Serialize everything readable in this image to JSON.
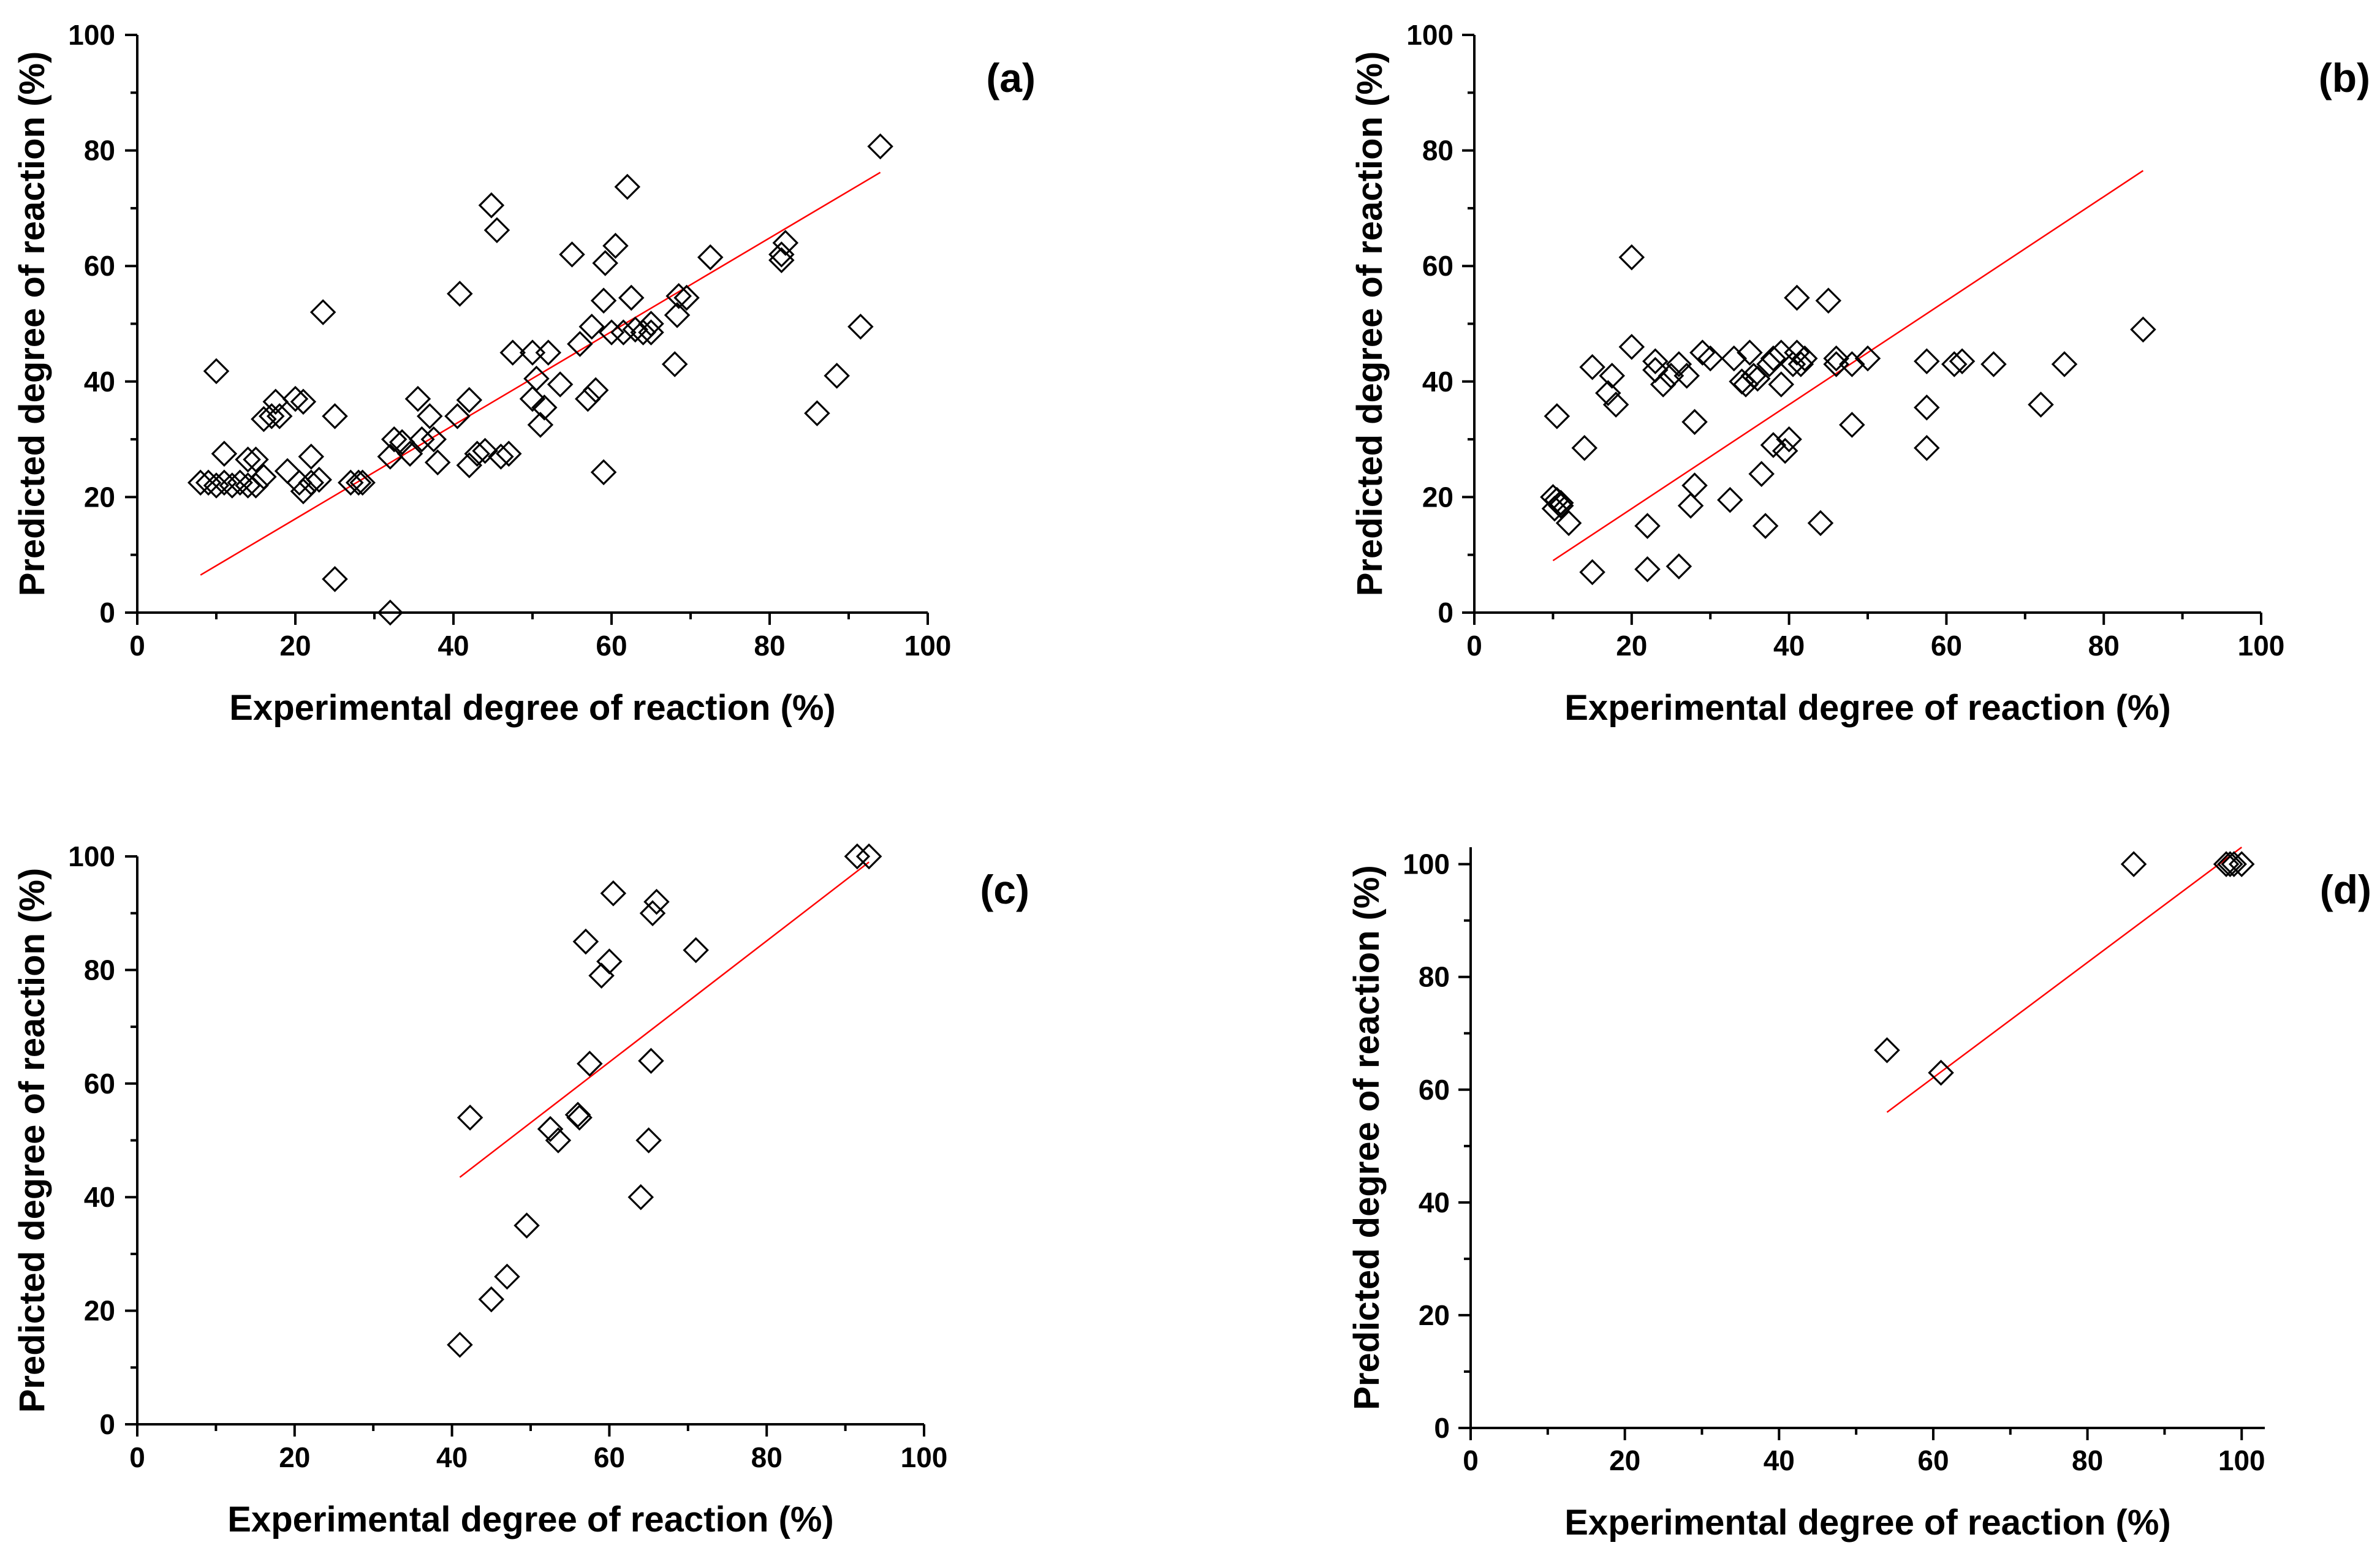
{
  "chart_data": [
    {
      "type": "scatter",
      "panel_label": "(a)",
      "xlabel": "Experimental degree of reaction (%)",
      "ylabel": "Predicted degree of reaction (%)",
      "xlim": [
        0,
        100
      ],
      "ylim": [
        0,
        100
      ],
      "xticks": [
        0,
        20,
        40,
        60,
        80,
        100
      ],
      "yticks": [
        0,
        20,
        40,
        60,
        80,
        100
      ],
      "xtick_labels": [
        "0",
        "20",
        "40",
        "60",
        "80",
        "100"
      ],
      "ytick_labels": [
        "0",
        "20",
        "40",
        "60",
        "80",
        "100"
      ],
      "marker": "open-diamond",
      "fit_line": {
        "x": [
          8,
          94
        ],
        "y": [
          6.5,
          76.2
        ],
        "color": "#ff0000"
      },
      "points": [
        [
          8,
          22.5
        ],
        [
          9,
          22.5
        ],
        [
          10,
          22
        ],
        [
          11,
          22.5
        ],
        [
          12,
          22
        ],
        [
          13,
          22.5
        ],
        [
          14,
          22
        ],
        [
          15,
          22
        ],
        [
          11,
          27.5
        ],
        [
          14,
          26.5
        ],
        [
          15,
          26.5
        ],
        [
          16,
          23.5
        ],
        [
          10,
          41.8
        ],
        [
          16,
          33.5
        ],
        [
          17,
          34
        ],
        [
          18,
          34
        ],
        [
          17.5,
          36.5
        ],
        [
          19,
          24.5
        ],
        [
          20,
          37
        ],
        [
          21,
          36.5
        ],
        [
          20.5,
          22.5
        ],
        [
          21,
          21
        ],
        [
          22,
          22.5
        ],
        [
          22,
          27
        ],
        [
          23,
          23
        ],
        [
          23.5,
          52
        ],
        [
          25,
          34
        ],
        [
          25,
          5.8
        ],
        [
          27,
          22.5
        ],
        [
          28,
          22.5
        ],
        [
          28.5,
          22.5
        ],
        [
          32,
          0
        ],
        [
          32,
          27
        ],
        [
          32.5,
          30
        ],
        [
          33.5,
          29.5
        ],
        [
          34.5,
          27.5
        ],
        [
          35.5,
          37
        ],
        [
          36,
          30
        ],
        [
          37,
          34
        ],
        [
          37.5,
          30
        ],
        [
          38,
          26
        ],
        [
          40.5,
          34
        ],
        [
          40.8,
          55.2
        ],
        [
          42,
          36.8
        ],
        [
          42,
          25.5
        ],
        [
          43,
          27.5
        ],
        [
          44,
          28
        ],
        [
          44.8,
          70.5
        ],
        [
          45.5,
          66.2
        ],
        [
          46,
          27
        ],
        [
          47,
          27.5
        ],
        [
          47.5,
          45
        ],
        [
          50,
          45
        ],
        [
          50,
          37
        ],
        [
          50.5,
          40.5
        ],
        [
          51,
          32.5
        ],
        [
          51.5,
          35.5
        ],
        [
          52,
          45
        ],
        [
          53.5,
          39.5
        ],
        [
          55,
          62
        ],
        [
          56,
          46.5
        ],
        [
          57,
          37
        ],
        [
          57.5,
          49.5
        ],
        [
          58,
          38.5
        ],
        [
          59,
          24.3
        ],
        [
          59,
          54
        ],
        [
          59.2,
          60.5
        ],
        [
          60,
          48.5
        ],
        [
          60.5,
          63.5
        ],
        [
          61.5,
          48.5
        ],
        [
          62,
          73.7
        ],
        [
          62.5,
          54.5
        ],
        [
          63,
          49
        ],
        [
          64,
          48.5
        ],
        [
          65,
          50
        ],
        [
          65,
          48.5
        ],
        [
          68,
          43
        ],
        [
          68.3,
          51.5
        ],
        [
          68.5,
          54.8
        ],
        [
          69.5,
          54.5
        ],
        [
          72.5,
          61.5
        ],
        [
          81.5,
          62
        ],
        [
          81.5,
          61
        ],
        [
          82,
          64
        ],
        [
          86,
          34.5
        ],
        [
          88.5,
          41
        ],
        [
          91.5,
          49.5
        ],
        [
          94,
          80.7
        ]
      ]
    },
    {
      "type": "scatter",
      "panel_label": "(b)",
      "xlabel": "Experimental degree of reaction (%)",
      "ylabel": "Predicted degree of reaction (%)",
      "xlim": [
        0,
        100
      ],
      "ylim": [
        0,
        100
      ],
      "xticks": [
        0,
        20,
        40,
        60,
        80,
        100
      ],
      "yticks": [
        0,
        20,
        40,
        60,
        80,
        100
      ],
      "xtick_labels": [
        "0",
        "20",
        "40",
        "60",
        "80",
        "100"
      ],
      "ytick_labels": [
        "0",
        "20",
        "40",
        "60",
        "80",
        "100"
      ],
      "marker": "open-diamond",
      "fit_line": {
        "x": [
          10,
          85
        ],
        "y": [
          9,
          76.5
        ],
        "color": "#ff0000"
      },
      "points": [
        [
          10,
          20
        ],
        [
          10.2,
          18
        ],
        [
          10.5,
          34
        ],
        [
          10.5,
          19.5
        ],
        [
          11,
          18.5
        ],
        [
          11,
          19
        ],
        [
          12,
          15.5
        ],
        [
          14,
          28.5
        ],
        [
          15,
          42.5
        ],
        [
          15,
          7
        ],
        [
          17,
          38
        ],
        [
          17.5,
          41
        ],
        [
          18,
          36
        ],
        [
          20,
          61.5
        ],
        [
          20,
          46
        ],
        [
          22,
          15
        ],
        [
          22,
          7.5
        ],
        [
          23,
          42
        ],
        [
          23,
          43.5
        ],
        [
          24,
          39.5
        ],
        [
          25,
          41
        ],
        [
          26,
          8
        ],
        [
          26,
          43
        ],
        [
          27,
          41
        ],
        [
          27.5,
          18.5
        ],
        [
          28,
          22
        ],
        [
          28,
          33
        ],
        [
          29,
          45
        ],
        [
          30,
          44
        ],
        [
          32.5,
          19.5
        ],
        [
          33,
          44
        ],
        [
          34,
          40
        ],
        [
          34.5,
          39.5
        ],
        [
          35,
          45
        ],
        [
          35.5,
          41
        ],
        [
          36,
          40.5
        ],
        [
          36.5,
          24
        ],
        [
          37,
          15
        ],
        [
          37.5,
          43
        ],
        [
          38,
          29
        ],
        [
          38,
          44
        ],
        [
          39,
          45
        ],
        [
          39,
          39.5
        ],
        [
          39.5,
          28
        ],
        [
          40,
          30
        ],
        [
          40.5,
          43
        ],
        [
          41,
          54.5
        ],
        [
          41,
          45
        ],
        [
          41.5,
          43
        ],
        [
          42,
          44
        ],
        [
          44,
          15.5
        ],
        [
          45,
          54
        ],
        [
          46,
          43
        ],
        [
          46,
          44
        ],
        [
          48,
          43
        ],
        [
          48,
          32.5
        ],
        [
          50,
          44
        ],
        [
          57.5,
          43.5
        ],
        [
          57.5,
          35.5
        ],
        [
          57.5,
          28.5
        ],
        [
          61,
          43
        ],
        [
          62,
          43.5
        ],
        [
          66,
          43
        ],
        [
          72,
          36
        ],
        [
          75,
          43
        ],
        [
          85,
          49
        ]
      ]
    },
    {
      "type": "scatter",
      "panel_label": "(c)",
      "xlabel": "Experimental degree of reaction (%)",
      "ylabel": "Predicted degree of reaction (%)",
      "xlim": [
        0,
        100
      ],
      "ylim": [
        0,
        100
      ],
      "xticks": [
        0,
        20,
        40,
        60,
        80,
        100
      ],
      "yticks": [
        0,
        20,
        40,
        60,
        80,
        100
      ],
      "xtick_labels": [
        "0",
        "20",
        "40",
        "60",
        "80",
        "100"
      ],
      "ytick_labels": [
        "0",
        "20",
        "40",
        "60",
        "80",
        "100"
      ],
      "marker": "open-diamond",
      "fit_line": {
        "x": [
          41,
          93
        ],
        "y": [
          43.5,
          99
        ],
        "color": "#ff0000"
      },
      "points": [
        [
          41,
          14
        ],
        [
          42.3,
          54
        ],
        [
          45,
          22
        ],
        [
          47,
          26
        ],
        [
          49.5,
          35
        ],
        [
          52.5,
          52
        ],
        [
          53.5,
          50
        ],
        [
          56,
          54.5
        ],
        [
          56.2,
          54
        ],
        [
          57,
          85
        ],
        [
          57.5,
          63.5
        ],
        [
          59,
          79
        ],
        [
          60,
          81.5
        ],
        [
          60.5,
          93.5
        ],
        [
          64,
          40
        ],
        [
          65,
          50
        ],
        [
          65.3,
          64
        ],
        [
          65.5,
          90
        ],
        [
          66,
          92
        ],
        [
          71,
          83.5
        ],
        [
          91.5,
          100
        ],
        [
          93,
          100
        ]
      ]
    },
    {
      "type": "scatter",
      "panel_label": "(d)",
      "xlabel": "Experimental degree of reaction (%)",
      "ylabel": "Predicted degree of reaction (%)",
      "xlim": [
        0,
        103
      ],
      "ylim": [
        0,
        103
      ],
      "xticks": [
        0,
        20,
        40,
        60,
        80,
        100
      ],
      "yticks": [
        0,
        20,
        40,
        60,
        80,
        100
      ],
      "xtick_labels": [
        "0",
        "20",
        "40",
        "60",
        "80",
        "100"
      ],
      "ytick_labels": [
        "0",
        "20",
        "40",
        "60",
        "80",
        "100"
      ],
      "marker": "open-diamond",
      "fit_line": {
        "x": [
          54,
          100
        ],
        "y": [
          56,
          103
        ],
        "color": "#ff0000"
      },
      "points": [
        [
          54,
          67
        ],
        [
          61,
          63
        ],
        [
          86,
          100
        ],
        [
          98,
          100
        ],
        [
          98.5,
          100
        ],
        [
          99,
          100
        ],
        [
          100,
          100
        ]
      ]
    }
  ]
}
